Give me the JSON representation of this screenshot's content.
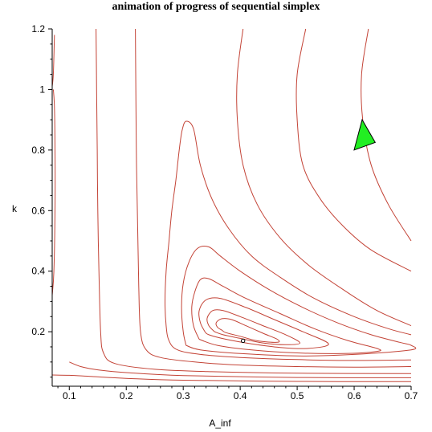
{
  "chart_data": {
    "type": "contour",
    "title": "animation of progress of sequential simplex",
    "xlabel": "A_inf",
    "ylabel": "k",
    "xlim": [
      0.07,
      0.7
    ],
    "ylim": [
      0.02,
      1.2
    ],
    "x_ticks": [
      "0.1",
      "0.2",
      "0.3",
      "0.4",
      "0.5",
      "0.6",
      "0.7"
    ],
    "y_ticks": [
      "0.2",
      "0.4",
      "0.6",
      "0.8",
      "1",
      "1.2"
    ],
    "grid": false,
    "contour_color": "#c0392b",
    "minimum_point": {
      "x": 0.405,
      "y": 0.17
    },
    "simplex": {
      "color": "#22ee22",
      "vertices": [
        [
          0.6,
          0.8
        ],
        [
          0.614,
          0.9
        ],
        [
          0.637,
          0.825
        ]
      ]
    },
    "contours": [
      [
        [
          0.368,
          0.205
        ],
        [
          0.36,
          0.215
        ],
        [
          0.358,
          0.23
        ],
        [
          0.368,
          0.243
        ],
        [
          0.385,
          0.24
        ],
        [
          0.41,
          0.22
        ],
        [
          0.44,
          0.195
        ],
        [
          0.465,
          0.175
        ],
        [
          0.465,
          0.165
        ],
        [
          0.43,
          0.17
        ],
        [
          0.4,
          0.185
        ],
        [
          0.375,
          0.197
        ],
        [
          0.368,
          0.205
        ]
      ],
      [
        [
          0.355,
          0.2
        ],
        [
          0.345,
          0.22
        ],
        [
          0.342,
          0.245
        ],
        [
          0.352,
          0.27
        ],
        [
          0.37,
          0.27
        ],
        [
          0.4,
          0.25
        ],
        [
          0.44,
          0.22
        ],
        [
          0.48,
          0.19
        ],
        [
          0.505,
          0.163
        ],
        [
          0.48,
          0.157
        ],
        [
          0.44,
          0.163
        ],
        [
          0.4,
          0.178
        ],
        [
          0.37,
          0.19
        ],
        [
          0.355,
          0.2
        ]
      ],
      [
        [
          0.338,
          0.2
        ],
        [
          0.33,
          0.23
        ],
        [
          0.328,
          0.27
        ],
        [
          0.34,
          0.305
        ],
        [
          0.365,
          0.31
        ],
        [
          0.41,
          0.28
        ],
        [
          0.46,
          0.24
        ],
        [
          0.51,
          0.2
        ],
        [
          0.555,
          0.16
        ],
        [
          0.52,
          0.145
        ],
        [
          0.47,
          0.148
        ],
        [
          0.42,
          0.16
        ],
        [
          0.375,
          0.175
        ],
        [
          0.345,
          0.19
        ],
        [
          0.338,
          0.2
        ]
      ],
      [
        [
          0.328,
          0.175
        ],
        [
          0.318,
          0.22
        ],
        [
          0.315,
          0.28
        ],
        [
          0.32,
          0.33
        ],
        [
          0.33,
          0.372
        ],
        [
          0.345,
          0.375
        ],
        [
          0.37,
          0.35
        ],
        [
          0.41,
          0.31
        ],
        [
          0.47,
          0.26
        ],
        [
          0.53,
          0.21
        ],
        [
          0.59,
          0.17
        ],
        [
          0.64,
          0.145
        ],
        [
          0.64,
          0.135
        ],
        [
          0.58,
          0.128
        ],
        [
          0.5,
          0.13
        ],
        [
          0.42,
          0.14
        ],
        [
          0.36,
          0.155
        ],
        [
          0.328,
          0.175
        ]
      ],
      [
        [
          0.305,
          0.155
        ],
        [
          0.3,
          0.2
        ],
        [
          0.297,
          0.28
        ],
        [
          0.3,
          0.36
        ],
        [
          0.31,
          0.43
        ],
        [
          0.325,
          0.475
        ],
        [
          0.345,
          0.48
        ],
        [
          0.365,
          0.45
        ],
        [
          0.4,
          0.4
        ],
        [
          0.45,
          0.34
        ],
        [
          0.51,
          0.28
        ],
        [
          0.57,
          0.23
        ],
        [
          0.63,
          0.19
        ],
        [
          0.68,
          0.165
        ],
        [
          0.7,
          0.155
        ],
        [
          0.7,
          0.14
        ],
        [
          0.6,
          0.125
        ],
        [
          0.5,
          0.12
        ],
        [
          0.4,
          0.128
        ],
        [
          0.33,
          0.14
        ],
        [
          0.305,
          0.155
        ]
      ],
      [
        [
          0.7,
          0.107
        ],
        [
          0.6,
          0.105
        ],
        [
          0.5,
          0.108
        ],
        [
          0.4,
          0.115
        ],
        [
          0.33,
          0.125
        ],
        [
          0.29,
          0.14
        ],
        [
          0.275,
          0.17
        ],
        [
          0.27,
          0.22
        ],
        [
          0.268,
          0.3
        ],
        [
          0.27,
          0.4
        ],
        [
          0.275,
          0.5
        ],
        [
          0.28,
          0.6
        ],
        [
          0.287,
          0.7
        ],
        [
          0.293,
          0.8
        ],
        [
          0.298,
          0.865
        ],
        [
          0.305,
          0.895
        ],
        [
          0.318,
          0.87
        ],
        [
          0.33,
          0.75
        ],
        [
          0.35,
          0.64
        ],
        [
          0.38,
          0.54
        ],
        [
          0.42,
          0.45
        ],
        [
          0.47,
          0.38
        ],
        [
          0.53,
          0.31
        ],
        [
          0.6,
          0.25
        ],
        [
          0.66,
          0.21
        ],
        [
          0.7,
          0.19
        ]
      ],
      [
        [
          0.7,
          0.085
        ],
        [
          0.6,
          0.083
        ],
        [
          0.5,
          0.085
        ],
        [
          0.4,
          0.09
        ],
        [
          0.32,
          0.1
        ],
        [
          0.26,
          0.115
        ],
        [
          0.235,
          0.14
        ],
        [
          0.225,
          0.2
        ],
        [
          0.222,
          0.35
        ],
        [
          0.22,
          0.55
        ],
        [
          0.218,
          0.75
        ],
        [
          0.217,
          0.95
        ],
        [
          0.216,
          1.2
        ]
      ],
      [
        [
          0.7,
          0.062
        ],
        [
          0.5,
          0.063
        ],
        [
          0.35,
          0.068
        ],
        [
          0.25,
          0.076
        ],
        [
          0.18,
          0.095
        ],
        [
          0.16,
          0.13
        ],
        [
          0.155,
          0.2
        ],
        [
          0.152,
          0.4
        ],
        [
          0.15,
          0.6
        ],
        [
          0.149,
          0.8
        ],
        [
          0.148,
          1.0
        ],
        [
          0.147,
          1.2
        ]
      ],
      [
        [
          0.7,
          0.048
        ],
        [
          0.5,
          0.049
        ],
        [
          0.3,
          0.055
        ],
        [
          0.2,
          0.065
        ],
        [
          0.15,
          0.074
        ],
        [
          0.12,
          0.085
        ],
        [
          0.1,
          0.1
        ]
      ],
      [
        [
          0.7,
          0.035
        ],
        [
          0.5,
          0.036
        ],
        [
          0.3,
          0.04
        ],
        [
          0.2,
          0.046
        ],
        [
          0.14,
          0.052
        ],
        [
          0.1,
          0.056
        ],
        [
          0.07,
          0.057
        ]
      ],
      [
        [
          0.405,
          1.2
        ],
        [
          0.395,
          1.05
        ],
        [
          0.395,
          0.9
        ],
        [
          0.405,
          0.75
        ],
        [
          0.43,
          0.62
        ],
        [
          0.47,
          0.51
        ],
        [
          0.52,
          0.42
        ],
        [
          0.58,
          0.34
        ],
        [
          0.64,
          0.27
        ],
        [
          0.7,
          0.22
        ]
      ],
      [
        [
          0.515,
          1.2
        ],
        [
          0.5,
          1.05
        ],
        [
          0.5,
          0.9
        ],
        [
          0.51,
          0.75
        ],
        [
          0.54,
          0.64
        ],
        [
          0.58,
          0.55
        ],
        [
          0.63,
          0.47
        ],
        [
          0.7,
          0.4
        ]
      ],
      [
        [
          0.625,
          1.2
        ],
        [
          0.613,
          1.05
        ],
        [
          0.615,
          0.9
        ],
        [
          0.63,
          0.75
        ],
        [
          0.66,
          0.62
        ],
        [
          0.7,
          0.5
        ]
      ],
      [
        [
          0.07,
          0.32
        ],
        [
          0.073,
          0.4
        ],
        [
          0.075,
          0.6
        ],
        [
          0.075,
          0.8
        ],
        [
          0.074,
          0.94
        ],
        [
          0.072,
          1.0
        ]
      ],
      [
        [
          0.07,
          1.01
        ],
        [
          0.072,
          1.05
        ],
        [
          0.074,
          1.18
        ]
      ]
    ]
  }
}
